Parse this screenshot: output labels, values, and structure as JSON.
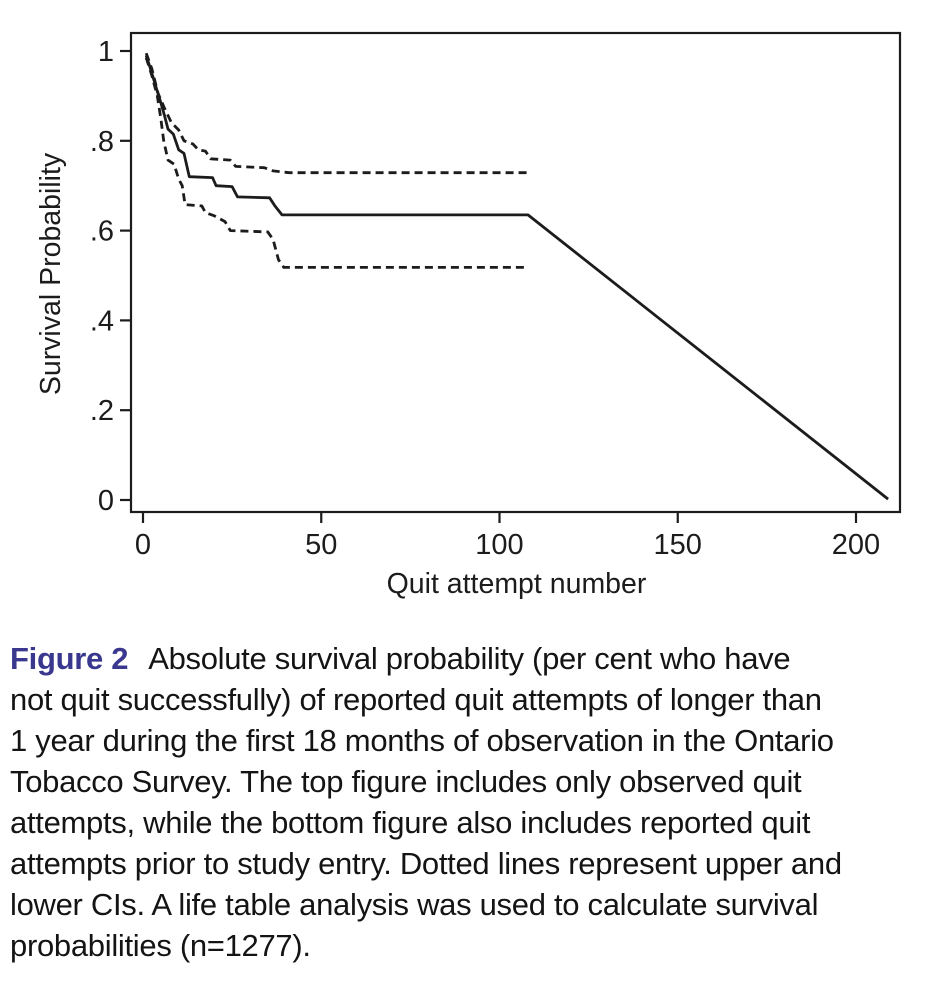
{
  "figure": {
    "caption": {
      "label": "Figure 2",
      "label_color": "#39388e",
      "lines": [
        "Absolute survival probability (per cent who have",
        "not quit successfully) of reported quit attempts of longer than",
        "1 year during the first 18 months of observation in the Ontario",
        "Tobacco Survey. The top figure includes only observed quit",
        "attempts, while the bottom figure also includes reported quit",
        "attempts prior to study entry. Dotted lines represent upper and",
        "lower CIs. A life table analysis was used to calculate survival",
        "probabilities (n=1277)."
      ],
      "full_text": "Figure 2 Absolute survival probability (per cent who have not quit successfully) of reported quit attempts of longer than 1 year during the first 18 months of observation in the Ontario Tobacco Survey. The top figure includes only observed quit attempts, while the bottom figure also includes reported quit attempts prior to study entry. Dotted lines represent upper and lower CIs. A life table analysis was used to calculate survival probabilities (n=1277)."
    }
  },
  "chart_data": {
    "type": "line",
    "title": "",
    "xlabel": "Quit attempt number",
    "ylabel": "Survival Probability",
    "xlim": [
      0,
      212
    ],
    "ylim": [
      0,
      1.04
    ],
    "x_ticks": [
      0,
      50,
      100,
      150,
      200
    ],
    "x_tick_labels": [
      "0",
      "50",
      "100",
      "150",
      "200"
    ],
    "y_ticks": [
      0,
      0.2,
      0.4,
      0.6,
      0.8,
      1
    ],
    "y_tick_labels": [
      "0",
      ".2",
      ".4",
      ".6",
      ".8",
      "1"
    ],
    "grid": false,
    "legend": "none",
    "line_color": "#1c1c1c",
    "n": 1277,
    "series": [
      {
        "name": "survival",
        "style": "solid",
        "points": [
          [
            0.9,
            0.99
          ],
          [
            2,
            0.963
          ],
          [
            3,
            0.937
          ],
          [
            4,
            0.91
          ],
          [
            5,
            0.885
          ],
          [
            6,
            0.857
          ],
          [
            7,
            0.826
          ],
          [
            8.5,
            0.815
          ],
          [
            10,
            0.78
          ],
          [
            11.5,
            0.772
          ],
          [
            13,
            0.72
          ],
          [
            19.5,
            0.718
          ],
          [
            20.5,
            0.7
          ],
          [
            25,
            0.698
          ],
          [
            26.5,
            0.675
          ],
          [
            35.5,
            0.673
          ],
          [
            37,
            0.655
          ],
          [
            39,
            0.635
          ],
          [
            108,
            0.635
          ],
          [
            209,
            0.002
          ]
        ]
      },
      {
        "name": "upper-ci",
        "style": "dashed",
        "points": [
          [
            0.9,
            0.995
          ],
          [
            2.5,
            0.96
          ],
          [
            4.2,
            0.906
          ],
          [
            6,
            0.873
          ],
          [
            8,
            0.84
          ],
          [
            10,
            0.824
          ],
          [
            11.5,
            0.8
          ],
          [
            14,
            0.793
          ],
          [
            15.5,
            0.78
          ],
          [
            17.5,
            0.777
          ],
          [
            19,
            0.76
          ],
          [
            24.5,
            0.757
          ],
          [
            26,
            0.743
          ],
          [
            34,
            0.74
          ],
          [
            36.5,
            0.733
          ],
          [
            41,
            0.729
          ],
          [
            108,
            0.729
          ]
        ]
      },
      {
        "name": "lower-ci",
        "style": "dashed",
        "points": [
          [
            0.9,
            0.985
          ],
          [
            2.5,
            0.945
          ],
          [
            4,
            0.9
          ],
          [
            5,
            0.85
          ],
          [
            5.8,
            0.8
          ],
          [
            7,
            0.757
          ],
          [
            8.7,
            0.748
          ],
          [
            10,
            0.715
          ],
          [
            11,
            0.7
          ],
          [
            11.8,
            0.658
          ],
          [
            16.5,
            0.655
          ],
          [
            17.5,
            0.64
          ],
          [
            20,
            0.633
          ],
          [
            23,
            0.62
          ],
          [
            24.5,
            0.6
          ],
          [
            35,
            0.597
          ],
          [
            36.5,
            0.58
          ],
          [
            38,
            0.535
          ],
          [
            39.5,
            0.518
          ],
          [
            108,
            0.518
          ]
        ]
      }
    ]
  }
}
